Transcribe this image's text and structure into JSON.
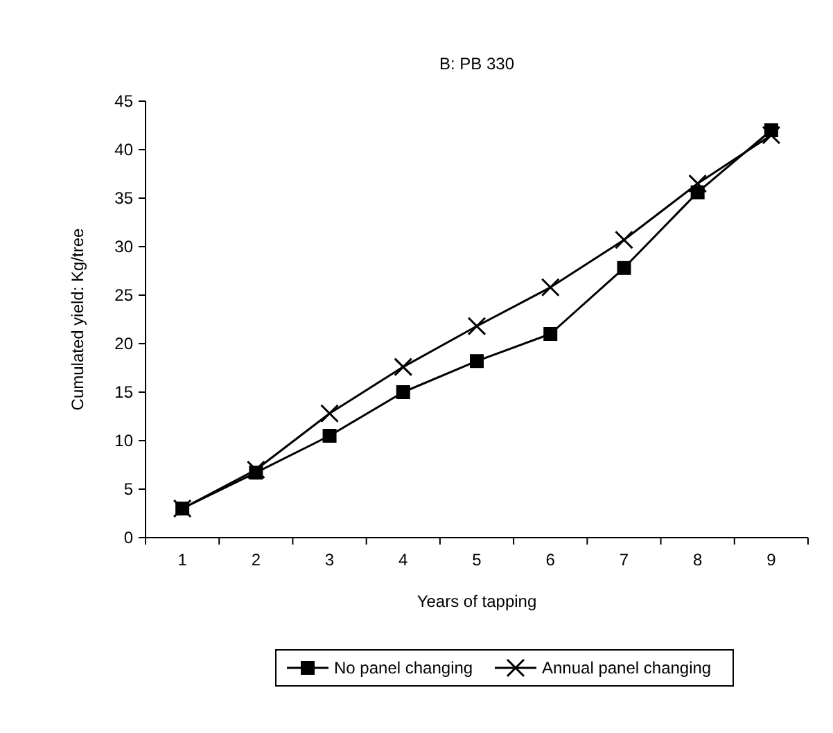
{
  "chart_data": {
    "type": "line",
    "title": "B: PB 330",
    "xlabel": "Years of tapping",
    "ylabel": "Cumulated yield: Kg/tree",
    "categories": [
      "1",
      "2",
      "3",
      "4",
      "5",
      "6",
      "7",
      "8",
      "9"
    ],
    "series": [
      {
        "name": "No panel changing",
        "color": "#000000",
        "marker": "square",
        "values": [
          3,
          6.7,
          10.5,
          15,
          18.2,
          21,
          27.8,
          35.6,
          42
        ]
      },
      {
        "name": "Annual panel changing",
        "color": "#000000",
        "marker": "cross",
        "values": [
          3,
          7,
          12.8,
          17.6,
          21.8,
          25.8,
          30.7,
          36.5,
          41.5
        ]
      }
    ],
    "ylim": [
      0,
      45
    ],
    "yticks": [
      0,
      5,
      10,
      15,
      20,
      25,
      30,
      35,
      40,
      45
    ],
    "grid": false,
    "legend": "bottom",
    "line_style": "solid"
  }
}
